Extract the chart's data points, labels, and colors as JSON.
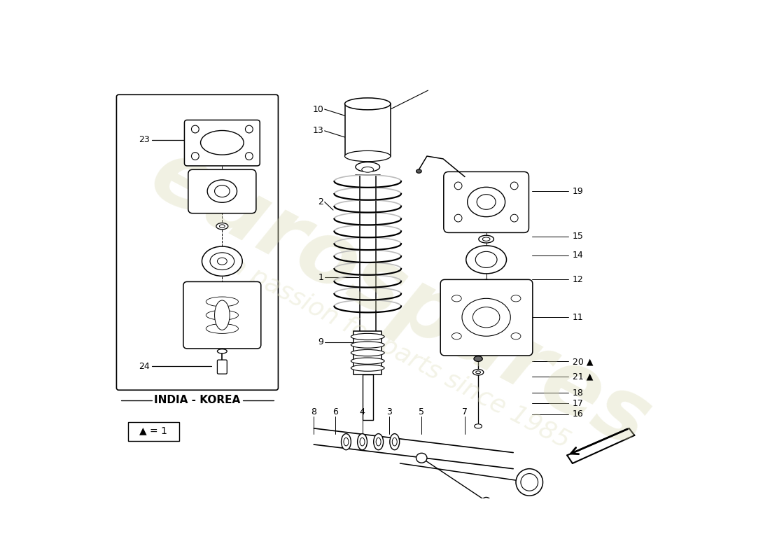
{
  "background_color": "#ffffff",
  "watermark_text": "eurospares",
  "watermark_subtext": "a passion for parts since 1985",
  "india_korea_label": "INDIA - KOREA",
  "legend_text": "▲ = 1",
  "line_color": "#000000",
  "text_color": "#000000",
  "watermark_color1": "#d8d8b0",
  "watermark_color2": "#e0e0c0",
  "wm_alpha1": 0.35,
  "wm_alpha2": 0.38
}
